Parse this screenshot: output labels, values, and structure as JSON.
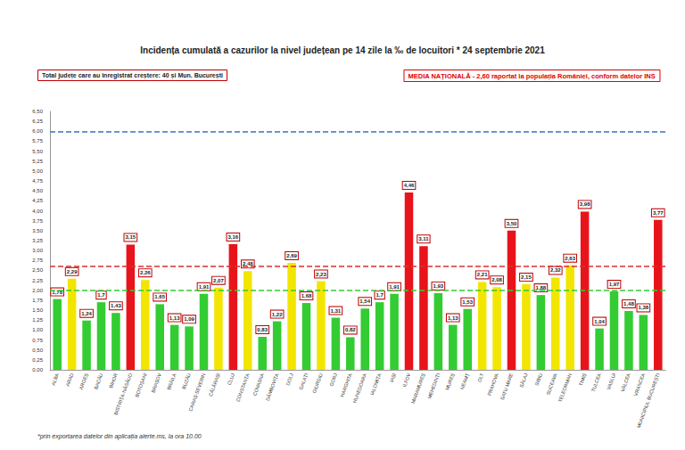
{
  "chart_data": {
    "type": "bar",
    "title": "Incidența cumulată a cazurilor la nivel județean pe 14 zile la ‰ de locuitori * 24 septembrie 2021",
    "annotations": [
      "Total județe care au înregistrat creștere: 40 și Mun. București",
      "MEDIA NAȚIONALĂ - 2,60 raportat la populația României, conform datelor INS",
      "*prin exportarea datelor din aplicația alerte.ms, la ora 10.00"
    ],
    "categories": [
      "ALBA",
      "ARAD",
      "ARGEȘ",
      "BACĂU",
      "BIHOR",
      "BISTRIȚA-NĂSĂUD",
      "BOTOȘANI",
      "BRAȘOV",
      "BRĂILA",
      "BUZĂU",
      "CARAȘ-SEVERIN",
      "CĂLĂRAȘI",
      "CLUJ",
      "CONSTANȚA",
      "COVASNA",
      "DÂMBOVIȚA",
      "DOLJ",
      "GALAȚI",
      "GIURGIU",
      "GORJ",
      "HARGHITA",
      "HUNEDOARA",
      "IALOMIȚA",
      "IAȘI",
      "ILFOV",
      "MARAMUREȘ",
      "MEHEDINȚI",
      "MUREȘ",
      "NEAMȚ",
      "OLT",
      "PRAHOVA",
      "SATU MARE",
      "SĂLAJ",
      "SIBIU",
      "SUCEAVA",
      "TELEORMAN",
      "TIMIȘ",
      "TULCEA",
      "VASLUI",
      "VÂLCEA",
      "VRANCEA",
      "MUNICIPIUL BUCUREȘTI"
    ],
    "values": [
      1.78,
      2.29,
      1.24,
      1.7,
      1.43,
      3.15,
      2.26,
      1.65,
      1.13,
      1.09,
      1.91,
      2.07,
      3.16,
      2.48,
      0.83,
      1.22,
      2.69,
      1.68,
      2.23,
      1.31,
      0.82,
      1.54,
      1.7,
      1.91,
      4.46,
      3.11,
      1.93,
      1.13,
      1.53,
      2.21,
      2.08,
      3.5,
      2.15,
      1.88,
      2.32,
      2.63,
      3.98,
      1.04,
      1.97,
      1.48,
      1.38,
      3.77
    ],
    "value_labels": [
      "1,78",
      "2,29",
      "1,24",
      "1,7",
      "1,43",
      "3,15",
      "2,26",
      "1,65",
      "1,13",
      "1,09",
      "1,91",
      "2,07",
      "3,16",
      "2,48",
      "0,83",
      "1,22",
      "2,69",
      "1,68",
      "2,23",
      "1,31",
      "0,82",
      "1,54",
      "1,7",
      "1,91",
      "4,46",
      "3,11",
      "1,93",
      "1,13",
      "1,53",
      "2,21",
      "2,08",
      "3,50",
      "2,15",
      "1,88",
      "2,32",
      "2,63",
      "3,98",
      "1,04",
      "1,97",
      "1,48",
      "1,38",
      "3,77"
    ],
    "colors": [
      "#33cc33",
      "#f2e600",
      "#33cc33",
      "#33cc33",
      "#33cc33",
      "#e8141b",
      "#f2e600",
      "#33cc33",
      "#33cc33",
      "#33cc33",
      "#33cc33",
      "#f2e600",
      "#e8141b",
      "#f2e600",
      "#33cc33",
      "#33cc33",
      "#f2e600",
      "#33cc33",
      "#f2e600",
      "#33cc33",
      "#33cc33",
      "#33cc33",
      "#33cc33",
      "#33cc33",
      "#e8141b",
      "#e8141b",
      "#33cc33",
      "#33cc33",
      "#33cc33",
      "#f2e600",
      "#f2e600",
      "#e8141b",
      "#f2e600",
      "#33cc33",
      "#f2e600",
      "#f2e600",
      "#e8141b",
      "#33cc33",
      "#33cc33",
      "#33cc33",
      "#33cc33",
      "#e8141b"
    ],
    "ylim": [
      0,
      6.5
    ],
    "yticks": [
      {
        "value": 0,
        "label": "0,00"
      },
      {
        "value": 0.25,
        "label": "0,25"
      },
      {
        "value": 0.5,
        "label": "0,50"
      },
      {
        "value": 0.75,
        "label": "0,75"
      },
      {
        "value": 1,
        "label": "1,00"
      },
      {
        "value": 1.25,
        "label": "1,25"
      },
      {
        "value": 1.5,
        "label": "1,50"
      },
      {
        "value": 1.75,
        "label": "1,75"
      },
      {
        "value": 2,
        "label": "2,00"
      },
      {
        "value": 2.25,
        "label": "2,25"
      },
      {
        "value": 2.5,
        "label": "2,50"
      },
      {
        "value": 2.75,
        "label": "2,75"
      },
      {
        "value": 3,
        "label": "3,00"
      },
      {
        "value": 3.25,
        "label": "3,25"
      },
      {
        "value": 3.5,
        "label": "3,50"
      },
      {
        "value": 3.75,
        "label": "3,75"
      },
      {
        "value": 4,
        "label": "4,00"
      },
      {
        "value": 4.25,
        "label": "4,25"
      },
      {
        "value": 4.5,
        "label": "4,50"
      },
      {
        "value": 4.75,
        "label": "4,75"
      },
      {
        "value": 5,
        "label": "5,00"
      },
      {
        "value": 5.25,
        "label": "5,25"
      },
      {
        "value": 5.5,
        "label": "5,50"
      },
      {
        "value": 5.75,
        "label": "5,75"
      },
      {
        "value": 6,
        "label": "6,00"
      },
      {
        "value": 6.25,
        "label": "6,25"
      },
      {
        "value": 6.5,
        "label": "6,50"
      }
    ],
    "grid": false,
    "data_labels": true,
    "reference_lines": [
      {
        "value": 2.6,
        "color": "#d93030",
        "line_style": "dashed"
      },
      {
        "value": 2,
        "color": "#33cc33",
        "line_style": "dashed"
      },
      {
        "value": 6,
        "color": "#3a74c4",
        "line_style": "dashed"
      }
    ]
  }
}
